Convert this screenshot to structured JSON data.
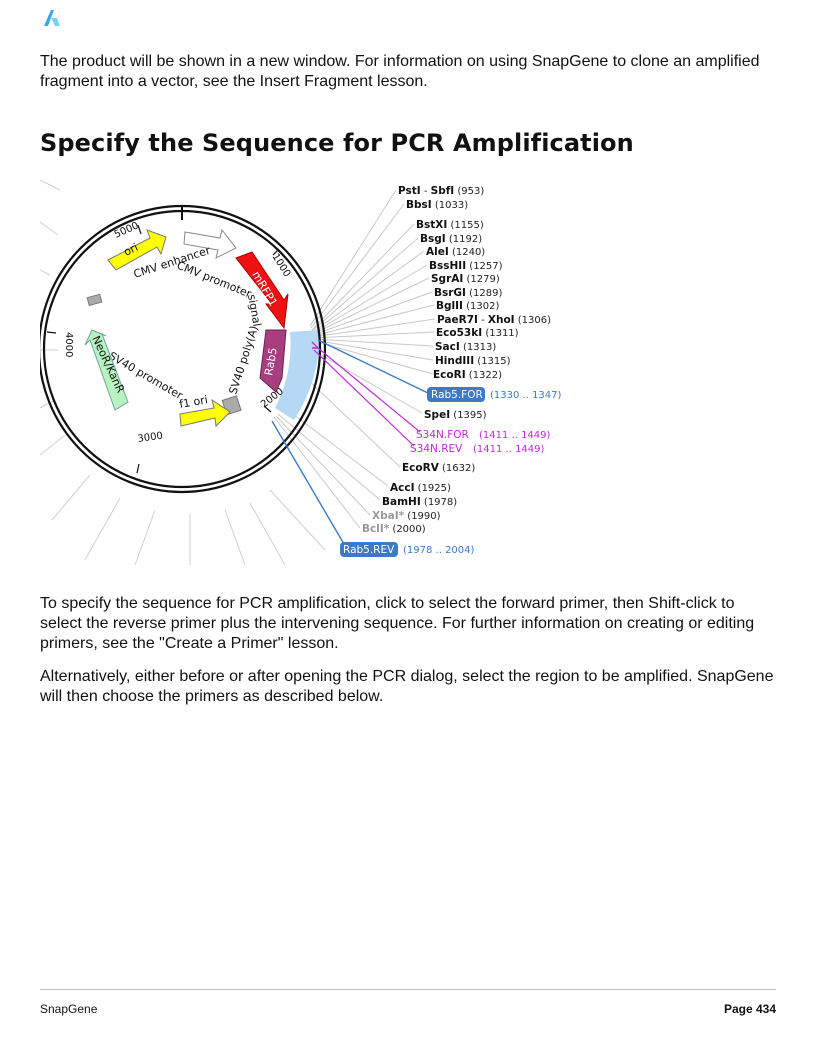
{
  "page": {
    "intro": "The product will be shown in a new window. For information on using SnapGene to clone an amplified fragment into a vector, see the Insert Fragment lesson.",
    "heading": "Specify the Sequence for PCR Amplification",
    "para_select": "To specify the sequence for PCR amplification, click to select the forward primer, then Shift-click to select the reverse primer plus the intervening sequence. For further information on creating or editing primers, see the \"Create a Primer\" lesson.",
    "para_alt": "Alternatively, either before or after opening the PCR dialog, select the region to be amplified. SnapGene will then choose the primers as described below.",
    "logo_icon": "snapgene-logo-icon"
  },
  "map": {
    "enzymes": [
      {
        "name": "PstI",
        "extra": "SbfI",
        "pos": "(953)"
      },
      {
        "name": "BbsI",
        "pos": "(1033)"
      },
      {
        "name": "BstXI",
        "pos": "(1155)"
      },
      {
        "name": "BsgI",
        "pos": "(1192)"
      },
      {
        "name": "AleI",
        "pos": "(1240)"
      },
      {
        "name": "BssHII",
        "pos": "(1257)"
      },
      {
        "name": "SgrAI",
        "pos": "(1279)"
      },
      {
        "name": "BsrGI",
        "pos": "(1289)"
      },
      {
        "name": "BglII",
        "pos": "(1302)"
      },
      {
        "name": "PaeR7I",
        "extra": "XhoI",
        "pos": "(1306)"
      },
      {
        "name": "Eco53kI",
        "pos": "(1311)"
      },
      {
        "name": "SacI",
        "pos": "(1313)"
      },
      {
        "name": "HindIII",
        "pos": "(1315)"
      },
      {
        "name": "EcoRI",
        "pos": "(1322)"
      },
      {
        "name": "SpeI",
        "pos": "(1395)"
      },
      {
        "name": "EcoRV",
        "pos": "(1632)"
      },
      {
        "name": "AccI",
        "pos": "(1925)"
      },
      {
        "name": "BamHI",
        "pos": "(1978)"
      },
      {
        "name": "XbaI*",
        "pos": "(1990)",
        "dim": true
      },
      {
        "name": "BclI*",
        "pos": "(2000)",
        "dim": true
      }
    ],
    "primers": [
      {
        "name": "Rab5.FOR",
        "range": "(1330 .. 1347)",
        "color": "#3b79c9"
      },
      {
        "name": "S34N.FOR",
        "range": "(1411 .. 1449)",
        "color": "#c02ad8"
      },
      {
        "name": "S34N.REV",
        "range": "(1411 .. 1449)",
        "color": "#c02ad8"
      },
      {
        "name": "Rab5.REV",
        "range": "(1978 .. 2004)",
        "color": "#3b79c9"
      }
    ],
    "features": {
      "ori": "ori",
      "cmv_enhancer": "CMV enhancer",
      "cmv_promoter": "CMV promoter",
      "mrfp1": "mRFP1",
      "signal": "signal",
      "rab5": "Rab5",
      "sv40_polya": "SV40 poly(A)",
      "f1_ori": "f1 ori",
      "sv40_promoter": "SV40 promoter",
      "neor": "NeoR/KanR"
    },
    "ticks": {
      "t1000": "1000",
      "t2000": "2000",
      "t3000": "3000",
      "t4000": "4000",
      "t5000": "5000"
    },
    "colors": {
      "ori": "#ffff00",
      "mrfp1": "#ee1111",
      "rab5": "#a83d7f",
      "neor": "#b9f2c1",
      "selection": "#b5d9f4",
      "primer_blue": "#3b79c9",
      "primer_purple": "#c02ad8"
    }
  },
  "footer": {
    "left": "SnapGene",
    "right": "Page 434"
  }
}
